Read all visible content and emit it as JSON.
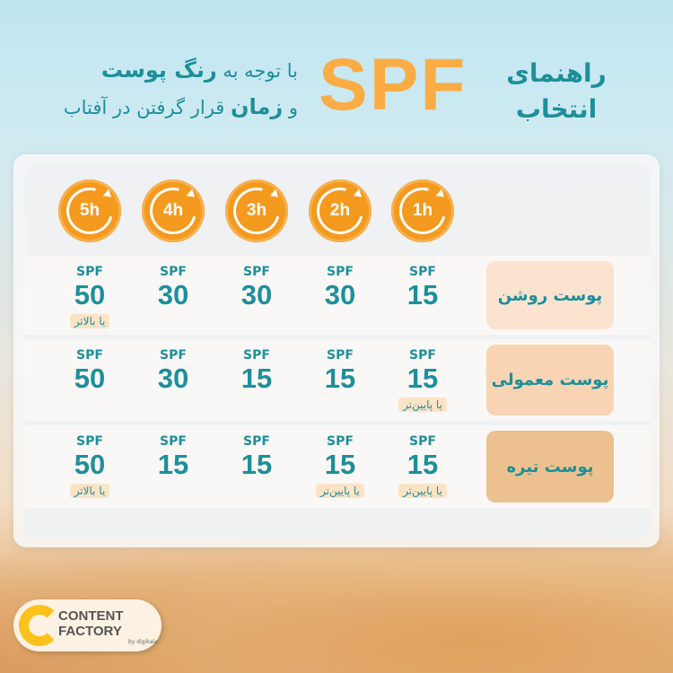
{
  "header": {
    "title_line1": "راهنمای",
    "title_line2": "انتخاب",
    "spf": "SPF",
    "subtitle_line1_pre": "با توجه به ",
    "subtitle_line1_bold": "رنگ پوست",
    "subtitle_line2_pre": "و ",
    "subtitle_line2_bold": "زمان",
    "subtitle_line2_post": " قرار گرفتن در آفتاب"
  },
  "hours": [
    "1h",
    "2h",
    "3h",
    "4h",
    "5h"
  ],
  "rows": [
    {
      "label": "پوست روشن",
      "color": "#fbe3cf",
      "cells": [
        {
          "spf": "SPF",
          "value": "15",
          "note": ""
        },
        {
          "spf": "SPF",
          "value": "30",
          "note": ""
        },
        {
          "spf": "SPF",
          "value": "30",
          "note": ""
        },
        {
          "spf": "SPF",
          "value": "30",
          "note": ""
        },
        {
          "spf": "SPF",
          "value": "50",
          "note": "یا بالاتر"
        }
      ]
    },
    {
      "label": "پوست معمولی",
      "color": "#f8d4b5",
      "cells": [
        {
          "spf": "SPF",
          "value": "15",
          "note": "یا پایین‌تر"
        },
        {
          "spf": "SPF",
          "value": "15",
          "note": ""
        },
        {
          "spf": "SPF",
          "value": "15",
          "note": ""
        },
        {
          "spf": "SPF",
          "value": "30",
          "note": ""
        },
        {
          "spf": "SPF",
          "value": "50",
          "note": ""
        }
      ]
    },
    {
      "label": "پوست تیره",
      "color": "#ecc18f",
      "cells": [
        {
          "spf": "SPF",
          "value": "15",
          "note": "یا پایین‌تر"
        },
        {
          "spf": "SPF",
          "value": "15",
          "note": "یا پایین‌تر"
        },
        {
          "spf": "SPF",
          "value": "15",
          "note": ""
        },
        {
          "spf": "SPF",
          "value": "15",
          "note": ""
        },
        {
          "spf": "SPF",
          "value": "50",
          "note": "یا بالاتر"
        }
      ]
    }
  ],
  "logo": {
    "line1": "CONTENT",
    "line2": "FACTORY",
    "by": "by digikala"
  },
  "colors": {
    "teal": "#1d8f9a",
    "orange": "#f49a1f",
    "spf_title": "#fbac45"
  }
}
